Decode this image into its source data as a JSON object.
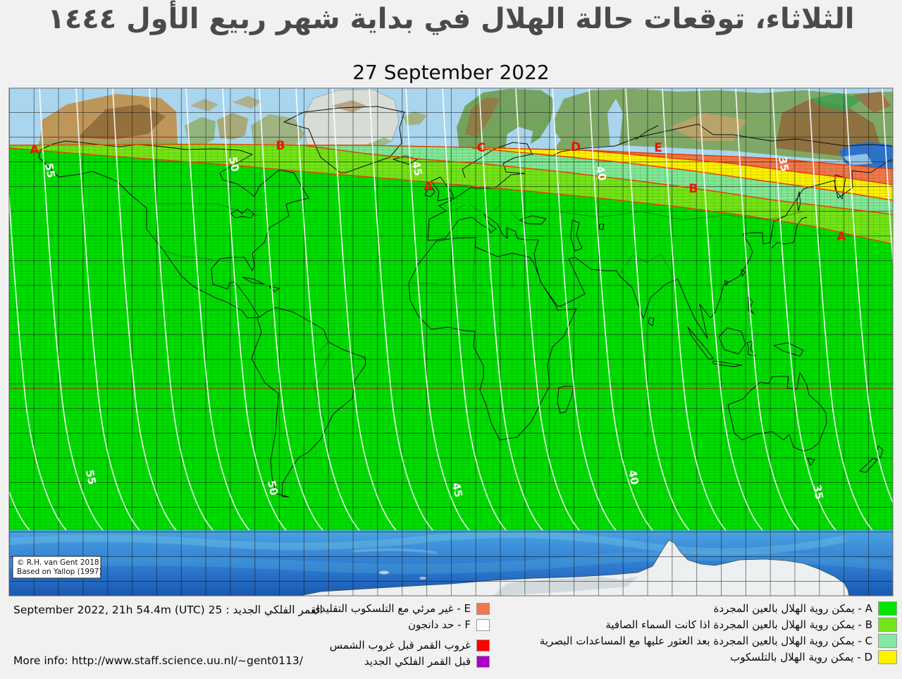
{
  "title": {
    "arabic": "الثلاثاء، توقعات حالة الهلال في بداية شهر ربيع الأول ١٤٤٤",
    "date": "27 September 2022"
  },
  "map": {
    "zone_marks": [
      {
        "letter": "A"
      },
      {
        "letter": "B"
      },
      {
        "letter": "C"
      },
      {
        "letter": "D"
      },
      {
        "letter": "E"
      },
      {
        "letter": "A"
      },
      {
        "letter": "B"
      },
      {
        "letter": "A"
      }
    ],
    "contour_labels": {
      "top": [
        "55",
        "50",
        "45",
        "40",
        "35"
      ],
      "bottom": [
        "55",
        "50",
        "45",
        "40",
        "35"
      ]
    },
    "copyright_line1": "© R.H. van Gent 2018",
    "copyright_line2": "Based on Yallop (1997)"
  },
  "colors": {
    "zoneA": "#00DE00",
    "zoneB": "#74E516",
    "zoneC": "#82E896",
    "zoneD": "#FFF200",
    "zoneE": "#F4774B",
    "boundary_red": "#E83C00",
    "label_red": "#EE1400",
    "equator_red": "#A82800",
    "moonset_red": "#FF0000",
    "new_moon_purple": "#AC00C8"
  },
  "legend": {
    "visibility_items": [
      {
        "letter": "A",
        "color": "#00E400",
        "text": "A - يمكن روية الهلال بالعين المجردة"
      },
      {
        "letter": "B",
        "color": "#74E516",
        "text": "B - يمكن روية الهلال بالعين المجردة اذا كانت السماء الصافية"
      },
      {
        "letter": "C",
        "color": "#85E8A0",
        "text": "C - يمكن روية الهلال بالعين المجردة بعد العثور عليها مع المساعدات البصرية"
      },
      {
        "letter": "D",
        "color": "#FFF200",
        "text": "D - يمكن روية الهلال بالتلسكوب"
      }
    ],
    "condition_items": [
      {
        "color": "#F4774B",
        "text": "E - غير مرئي مع التلسكوب التقليدي"
      },
      {
        "color": "#FFFFFF",
        "text": "F - حد دانجون"
      },
      {
        "color": "#FF0000",
        "text": "غروب القمر قبل غروب الشمس"
      },
      {
        "color": "#AC00C8",
        "text": "قبل القمر الفلكي الجديد"
      }
    ]
  },
  "footer": {
    "new_moon": "القمر الفلكي الجديد : 25 September 2022, 21h 54.4m (UTC)",
    "more_info": "More info: http://www.staff.science.uu.nl/~gent0113/"
  }
}
